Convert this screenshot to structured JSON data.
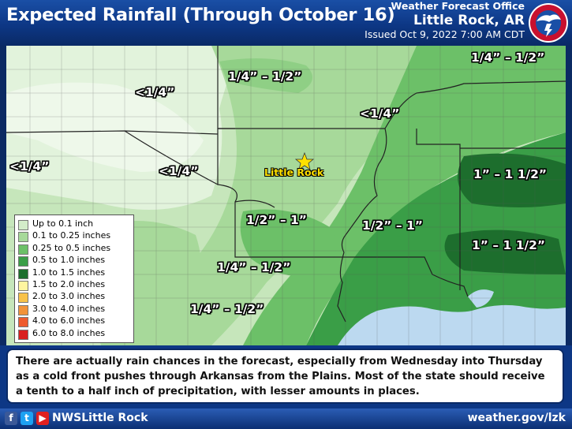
{
  "header": {
    "title": "Expected Rainfall (Through October 16)",
    "office_line": "Weather Forecast Office",
    "office_name": "Little Rock, AR",
    "issued": "Issued Oct 9, 2022 7:00 AM CDT"
  },
  "map": {
    "city_label": "Little Rock",
    "range_labels": [
      "1/4” – 1/2”",
      "1/4” – 1/2”",
      "<1/4”",
      "<1/4”",
      "<1/4”",
      "<1/4”",
      "1” – 1 1/2”",
      "1/2” – 1”",
      "1/2” – 1”",
      "1” – 1 1/2”",
      "1/4” – 1/2”",
      "1/4” – 1/2”"
    ]
  },
  "legend": {
    "items": [
      {
        "label": "Up to 0.1 inch",
        "color": "#d3ecc9"
      },
      {
        "label": "0.1 to 0.25 inches",
        "color": "#a7d99a"
      },
      {
        "label": "0.25 to 0.5 inches",
        "color": "#6cc068"
      },
      {
        "label": "0.5 to 1.0 inches",
        "color": "#3a9e47"
      },
      {
        "label": "1.0 to 1.5 inches",
        "color": "#1d6e2d"
      },
      {
        "label": "1.5 to 2.0 inches",
        "color": "#fff5a0"
      },
      {
        "label": "2.0 to 3.0 inches",
        "color": "#f8c24a"
      },
      {
        "label": "3.0 to 4.0 inches",
        "color": "#f2933a"
      },
      {
        "label": "4.0 to 6.0 inches",
        "color": "#ee5b2e"
      },
      {
        "label": "6.0 to 8.0 inches",
        "color": "#d9201f"
      }
    ]
  },
  "caption": "There are actually rain chances in the forecast, especially from Wednesday into Thursday as a cold front pushes through Arkansas from the Plains. Most of the state should receive a tenth to a half inch of precipitation, with lesser amounts in places.",
  "footer": {
    "handle": "NWSLittle Rock",
    "website": "weather.gov/lzk"
  }
}
